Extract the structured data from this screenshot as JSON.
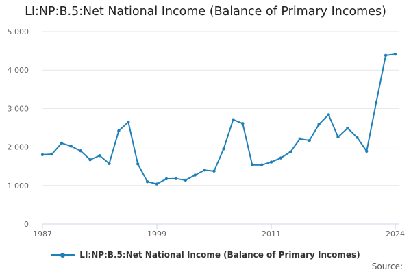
{
  "header": {
    "title": "LI:NP:B.5:Net National Income (Balance of Primary Incomes)"
  },
  "footer": {
    "source_label": "Source:"
  },
  "colors": {
    "series": "#1f7fb8",
    "grid": "#e6e6e6",
    "axis": "#ccd6eb",
    "tick_text": "#666666"
  },
  "chart_data": {
    "type": "line",
    "title": "LI:NP:B.5:Net National Income (Balance of Primary Incomes)",
    "xlabel": "",
    "ylabel": "",
    "x": [
      1987,
      1988,
      1989,
      1990,
      1991,
      1992,
      1993,
      1994,
      1995,
      1996,
      1997,
      1998,
      1999,
      2000,
      2001,
      2002,
      2003,
      2004,
      2005,
      2006,
      2007,
      2008,
      2009,
      2010,
      2011,
      2012,
      2013,
      2014,
      2015,
      2016,
      2017,
      2018,
      2019,
      2020,
      2021,
      2022,
      2023,
      2024
    ],
    "series": [
      {
        "name": "LI:NP:B.5:Net National Income (Balance of Primary Incomes)",
        "values": [
          1800,
          1815,
          2100,
          2020,
          1900,
          1670,
          1775,
          1570,
          2420,
          2650,
          1560,
          1100,
          1040,
          1175,
          1180,
          1140,
          1270,
          1400,
          1375,
          1950,
          2710,
          2610,
          1535,
          1535,
          1610,
          1715,
          1870,
          2210,
          2170,
          2590,
          2840,
          2260,
          2490,
          2250,
          1890,
          3150,
          4380,
          4410
        ]
      }
    ],
    "xlim": [
      1987,
      2024
    ],
    "ylim": [
      0,
      5000
    ],
    "x_tick_labels": [
      "1987",
      "1999",
      "2011",
      "2024"
    ],
    "x_tick_values": [
      1987,
      1999,
      2011,
      2024
    ],
    "y_tick_labels": [
      "0",
      "1 000",
      "2 000",
      "3 000",
      "4 000",
      "5 000"
    ],
    "y_tick_values": [
      0,
      1000,
      2000,
      3000,
      4000,
      5000
    ],
    "grid": true,
    "legend": "bottom-center"
  }
}
